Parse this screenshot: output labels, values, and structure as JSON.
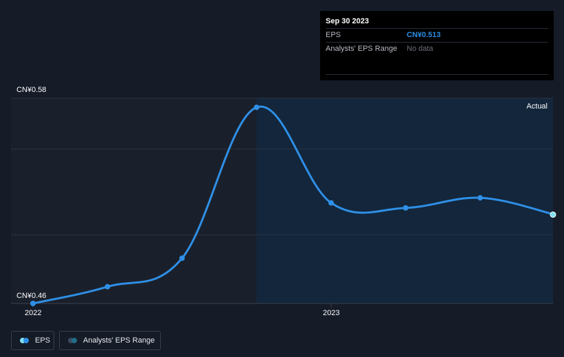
{
  "chart_data": {
    "type": "line",
    "title": "",
    "ylabel_top": "CN¥0.58",
    "ylabel_bottom": "CN¥0.46",
    "ylim": [
      0.46,
      0.58
    ],
    "x_tick_labels": [
      "2022",
      "2023"
    ],
    "region_label": "Actual",
    "series": [
      {
        "name": "EPS",
        "color": "#2f8fe6",
        "points": [
          {
            "x": "2021-12-31",
            "y": 0.46
          },
          {
            "x": "2022-03-31",
            "y": 0.47
          },
          {
            "x": "2022-06-30",
            "y": 0.487
          },
          {
            "x": "2022-09-30",
            "y": 0.577
          },
          {
            "x": "2022-12-31",
            "y": 0.52
          },
          {
            "x": "2023-03-31",
            "y": 0.517
          },
          {
            "x": "2023-06-30",
            "y": 0.523
          },
          {
            "x": "2023-09-30",
            "y": 0.513
          }
        ]
      }
    ],
    "grid": true
  },
  "tooltip": {
    "date": "Sep 30 2023",
    "rows": [
      {
        "label": "EPS",
        "value": "CN¥0.513"
      },
      {
        "label": "Analysts' EPS Range",
        "value": "No data"
      }
    ]
  },
  "legend": {
    "items": [
      {
        "label": "EPS",
        "colors": [
          "#2f8fe6",
          "#7fe0f0"
        ]
      },
      {
        "label": "Analysts' EPS Range",
        "colors": [
          "#1f6f8a",
          "#3d4a5c"
        ]
      }
    ]
  }
}
